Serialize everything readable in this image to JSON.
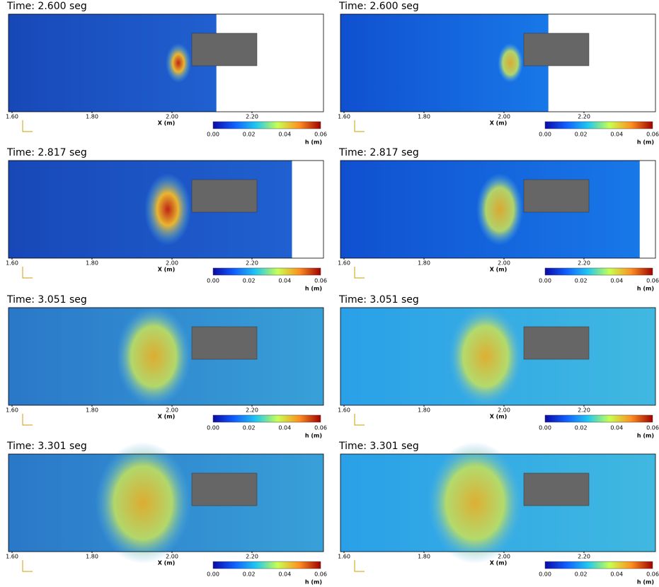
{
  "panels": [
    {
      "time": "Time: 2.600 seg",
      "x_label": "X (m)",
      "x_ticks": [
        "1.60",
        "1.80",
        "2.00",
        "2.20"
      ],
      "colorbar_ticks": [
        "0.00",
        "0.02",
        "0.04",
        "0.06"
      ],
      "colorbar_label": "h (m)"
    },
    {
      "time": "Time: 2.600 seg",
      "x_label": "X (m)",
      "x_ticks": [
        "1.60",
        "1.80",
        "2.00",
        "2.20"
      ],
      "colorbar_ticks": [
        "0.00",
        "0.02",
        "0.04",
        "0.06"
      ],
      "colorbar_label": "h (m)"
    },
    {
      "time": "Time: 2.817 seg",
      "x_label": "X (m)",
      "x_ticks": [
        "1.60",
        "1.80",
        "2.00",
        "2.20"
      ],
      "colorbar_ticks": [
        "0.00",
        "0.02",
        "0.04",
        "0.06"
      ],
      "colorbar_label": "h (m)"
    },
    {
      "time": "Time: 2.817 seg",
      "x_label": "X (m)",
      "x_ticks": [
        "1.60",
        "1.80",
        "2.00",
        "2.20"
      ],
      "colorbar_ticks": [
        "0.00",
        "0.02",
        "0.04",
        "0.06"
      ],
      "colorbar_label": "h (m)"
    },
    {
      "time": "Time: 3.051 seg",
      "x_label": "X (m)",
      "x_ticks": [
        "1.60",
        "1.80",
        "2.00",
        "2.20"
      ],
      "colorbar_ticks": [
        "0.00",
        "0.02",
        "0.04",
        "0.06"
      ],
      "colorbar_label": "h (m)"
    },
    {
      "time": "Time: 3.051 seg",
      "x_label": "X (m)",
      "x_ticks": [
        "1.60",
        "1.80",
        "2.00",
        "2.20"
      ],
      "colorbar_ticks": [
        "0.00",
        "0.02",
        "0.04",
        "0.06"
      ],
      "colorbar_label": "h (m)"
    },
    {
      "time": "Time: 3.301 seg",
      "x_label": "X (m)",
      "x_ticks": [
        "1.60",
        "1.80",
        "2.00",
        "2.20"
      ],
      "colorbar_ticks": [
        "0.00",
        "0.02",
        "0.04",
        "0.06"
      ],
      "colorbar_label": "h (m)"
    },
    {
      "time": "Time: 3.301 seg",
      "x_label": "X (m)",
      "x_ticks": [
        "1.60",
        "1.80",
        "2.00",
        "2.20"
      ],
      "colorbar_ticks": [
        "0.00",
        "0.02",
        "0.04",
        "0.06"
      ],
      "colorbar_label": "h (m)"
    }
  ]
}
